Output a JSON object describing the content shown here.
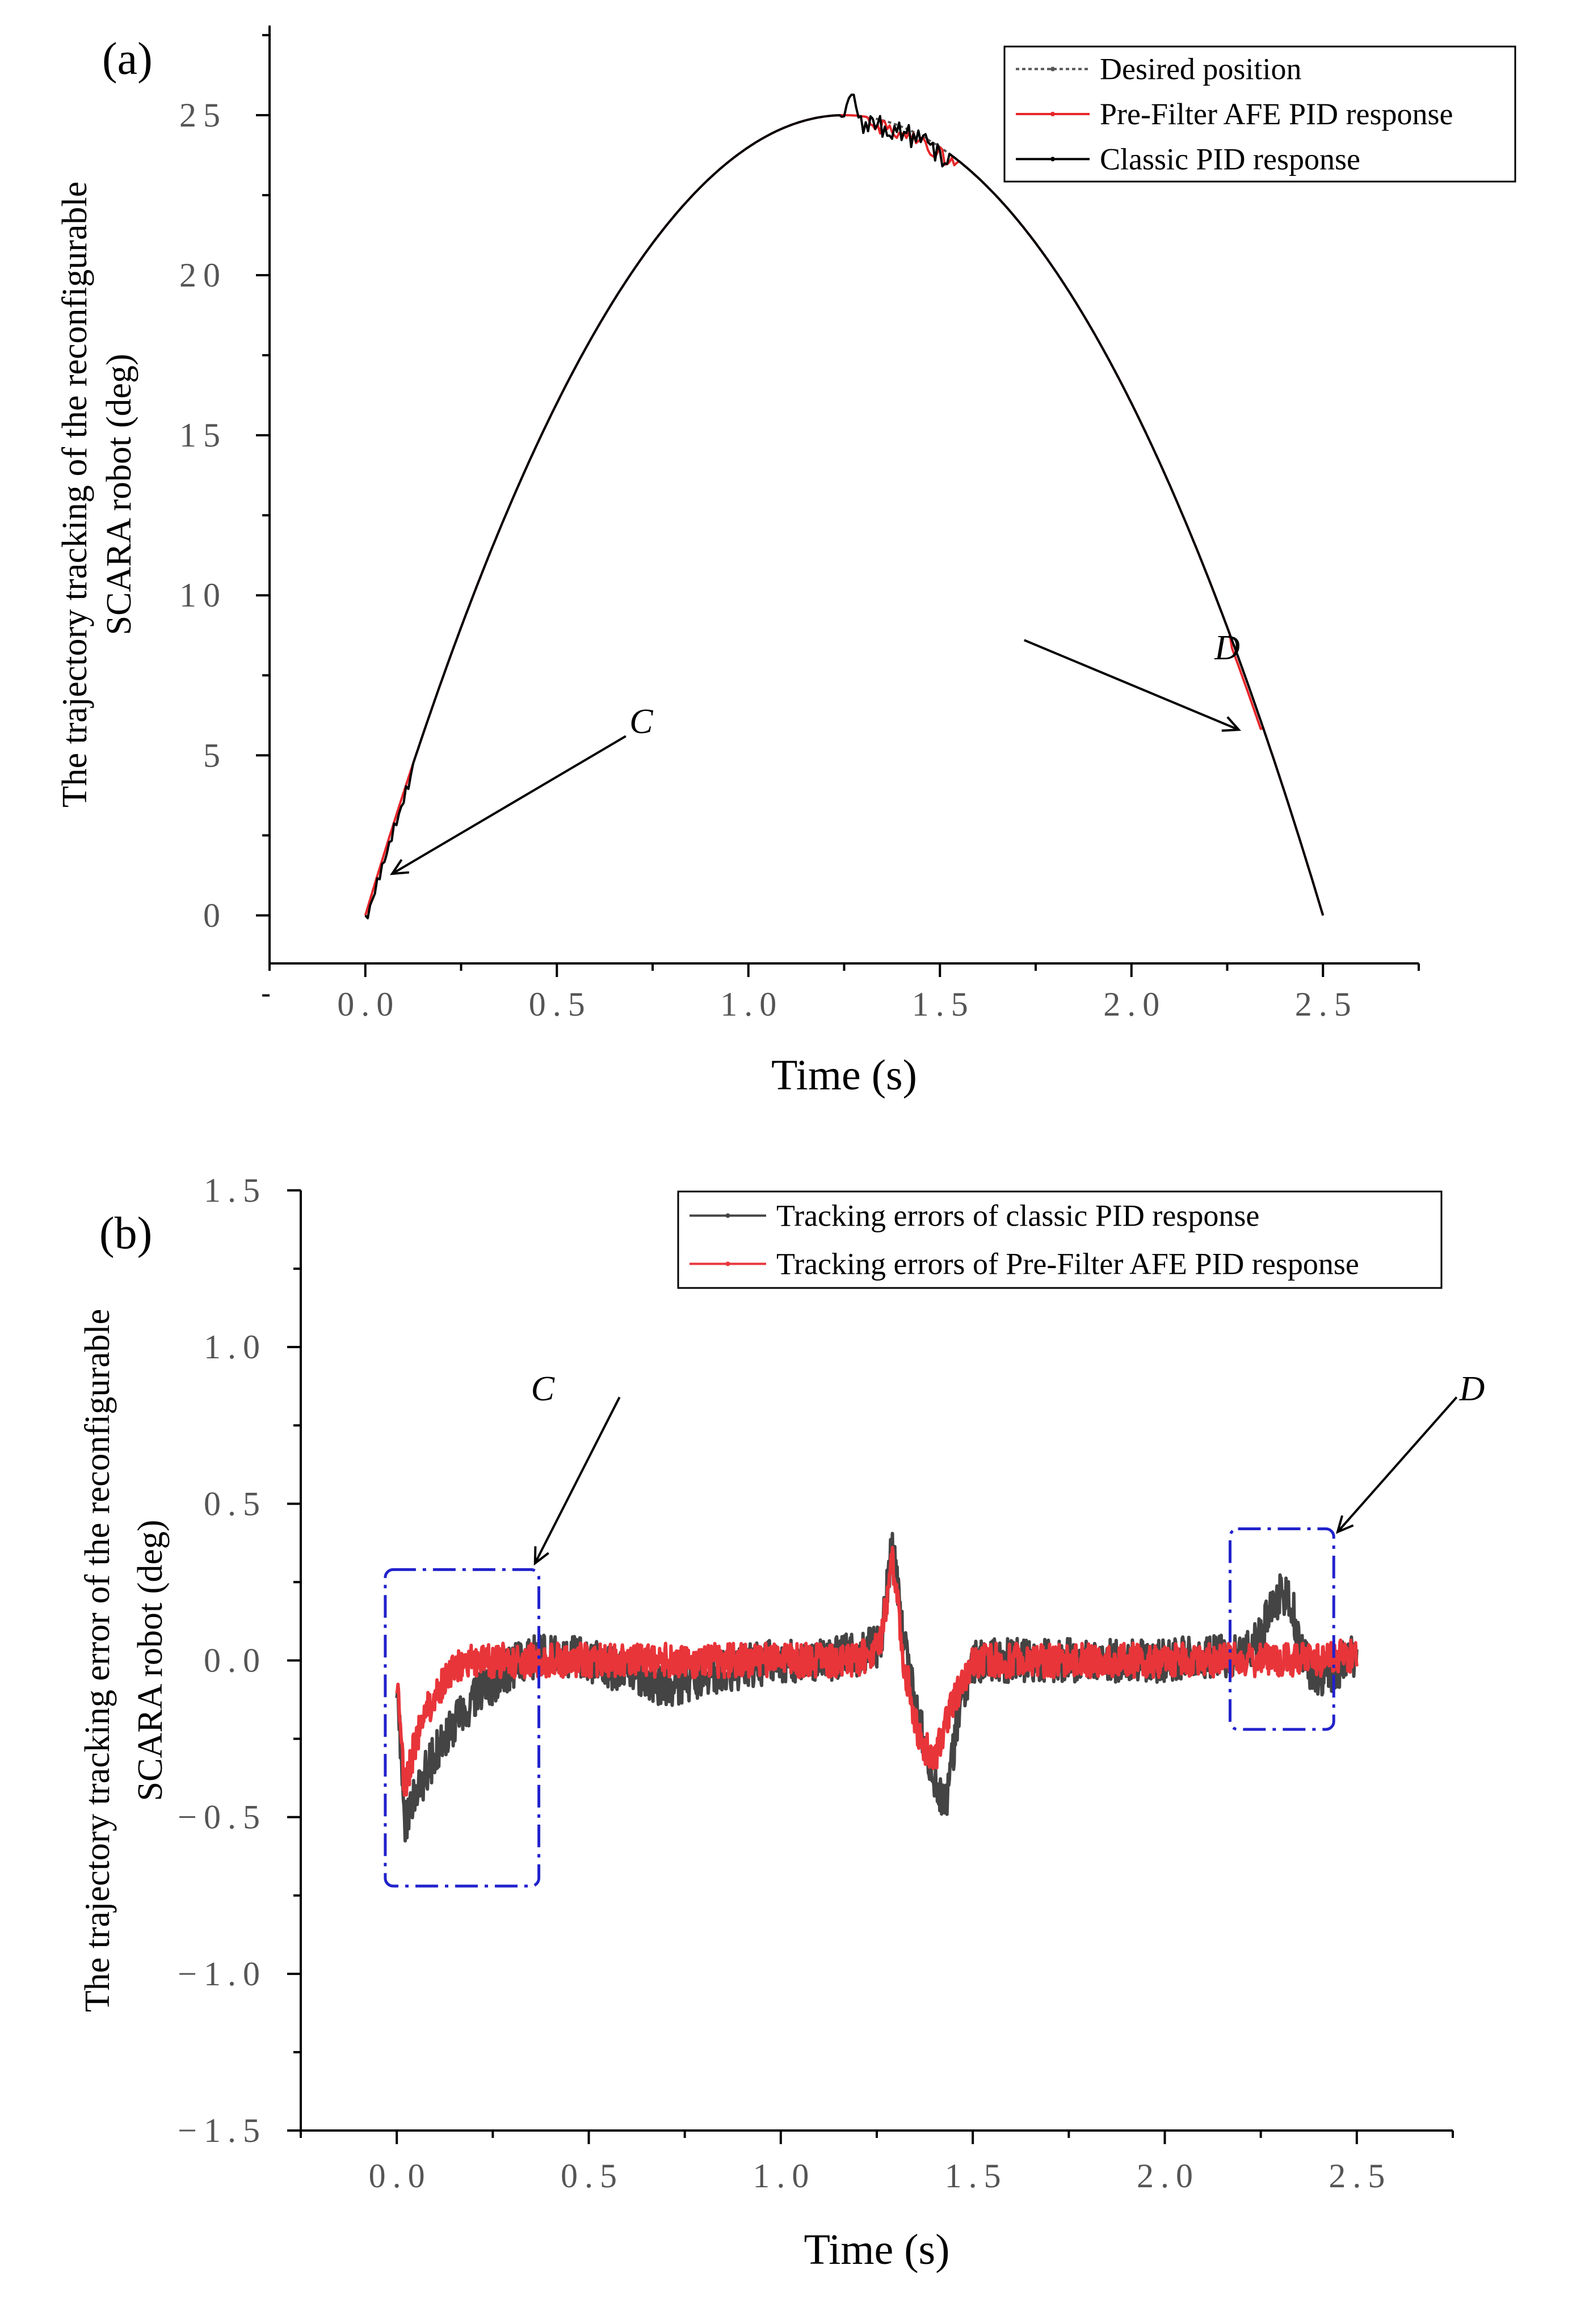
{
  "chart_data": [
    {
      "panel_label": "(a)",
      "type": "line",
      "title": "",
      "xlabel": "Time (s)",
      "ylabel": [
        "The trajectory tracking of the reconfigurable",
        "SCARA robot (deg)"
      ],
      "xlim": [
        -0.25,
        2.75
      ],
      "ylim": [
        -1.5,
        27.8
      ],
      "xticks": [
        0.0,
        0.5,
        1.0,
        1.5,
        2.0,
        2.5
      ],
      "xtick_labels": [
        "0.0",
        "0.5",
        "1.0",
        "1.5",
        "2.0",
        "2.5"
      ],
      "yticks": [
        0,
        5,
        10,
        15,
        20,
        25
      ],
      "ytick_labels": [
        "0",
        "5",
        "10",
        "15",
        "20",
        "25"
      ],
      "legend_position": "top-right",
      "series": [
        {
          "name": "Desired position",
          "color": "#555555",
          "style": "dotted",
          "model": "parabola",
          "peak": 25,
          "t_end": 2.5
        },
        {
          "name": "Pre-Filter AFE PID response",
          "color": "#e8262a",
          "style": "solid",
          "model": "parabola",
          "peak": 25,
          "t_end": 2.5
        },
        {
          "name": "Classic PID response",
          "color": "#000000",
          "style": "solid",
          "model": "parabola",
          "peak": 25,
          "t_end": 2.5
        }
      ],
      "annotations": [
        {
          "text": "C",
          "x": 0.72,
          "y": 5.7
        },
        {
          "text": "D",
          "x": 2.25,
          "y": 8.0
        }
      ],
      "arrows": [
        {
          "from": [
            0.68,
            5.6
          ],
          "to": [
            0.07,
            1.3
          ]
        },
        {
          "from": [
            1.72,
            8.6
          ],
          "to": [
            2.28,
            5.8
          ]
        }
      ]
    },
    {
      "panel_label": "(b)",
      "type": "line",
      "title": "",
      "xlabel": "Time (s)",
      "ylabel": [
        "The trajectory tracking error of the reconfigurable",
        "SCARA robot (deg)"
      ],
      "xlim": [
        -0.25,
        2.75
      ],
      "ylim": [
        -1.5,
        1.5
      ],
      "xticks": [
        0.0,
        0.5,
        1.0,
        1.5,
        2.0,
        2.5
      ],
      "xtick_labels": [
        "0.0",
        "0.5",
        "1.0",
        "1.5",
        "2.0",
        "2.5"
      ],
      "yticks": [
        -1.5,
        -1.0,
        -0.5,
        0.0,
        0.5,
        1.0,
        1.5
      ],
      "ytick_labels": [
        "−1.5",
        "−1.0",
        "−0.5",
        "0.0",
        "0.5",
        "1.0",
        "1.5"
      ],
      "legend_position": "top-right",
      "series": [
        {
          "name": "Tracking errors of classic PID response",
          "color": "#444444",
          "style": "solid",
          "x": [
            0.0,
            0.02,
            0.05,
            0.1,
            0.15,
            0.2,
            0.3,
            0.4,
            0.5,
            0.6,
            0.7,
            0.8,
            0.9,
            1.0,
            1.1,
            1.2,
            1.26,
            1.29,
            1.32,
            1.36,
            1.4,
            1.43,
            1.46,
            1.5,
            1.6,
            1.8,
            2.0,
            2.2,
            2.25,
            2.3,
            2.33,
            2.36,
            2.4,
            2.45,
            2.5
          ],
          "values": [
            -0.05,
            -0.52,
            -0.42,
            -0.3,
            -0.2,
            -0.12,
            -0.02,
            0.03,
            0.0,
            -0.04,
            -0.08,
            -0.05,
            -0.02,
            0.0,
            0.0,
            0.02,
            0.05,
            0.38,
            0.05,
            -0.2,
            -0.38,
            -0.45,
            -0.2,
            0.0,
            0.0,
            0.0,
            0.0,
            0.02,
            0.08,
            0.22,
            0.18,
            0.0,
            -0.05,
            -0.02,
            0.02
          ],
          "noise": 0.07
        },
        {
          "name": "Tracking errors of Pre-Filter AFE PID response",
          "color": "#e8353a",
          "style": "solid",
          "x": [
            0.0,
            0.02,
            0.05,
            0.1,
            0.15,
            0.2,
            0.3,
            0.4,
            0.5,
            0.6,
            0.8,
            1.0,
            1.2,
            1.26,
            1.29,
            1.32,
            1.36,
            1.4,
            1.44,
            1.5,
            1.6,
            1.8,
            2.0,
            2.2,
            2.3,
            2.4,
            2.5
          ],
          "values": [
            -0.05,
            -0.42,
            -0.25,
            -0.1,
            -0.03,
            0.0,
            0.0,
            0.0,
            0.0,
            0.0,
            0.0,
            0.0,
            0.0,
            0.05,
            0.33,
            0.0,
            -0.25,
            -0.32,
            -0.15,
            0.0,
            0.0,
            0.0,
            0.0,
            0.0,
            0.0,
            0.0,
            0.02
          ],
          "noise": 0.055
        }
      ],
      "annotations": [
        {
          "text": "C",
          "x": 0.38,
          "y": 0.83
        },
        {
          "text": "D",
          "x": 2.8,
          "y": 0.83
        }
      ],
      "arrows": [
        {
          "from": [
            0.58,
            0.84
          ],
          "to": [
            0.36,
            0.31
          ]
        },
        {
          "from": [
            2.76,
            0.84
          ],
          "to": [
            2.45,
            0.41
          ]
        }
      ],
      "highlight_regions": [
        {
          "x0": -0.03,
          "x1": 0.37,
          "y0": -0.72,
          "y1": 0.29
        },
        {
          "x0": 2.17,
          "x1": 2.44,
          "y0": -0.22,
          "y1": 0.42
        }
      ]
    }
  ]
}
